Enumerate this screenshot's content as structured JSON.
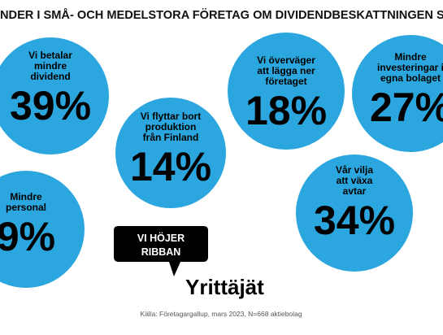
{
  "header": {
    "title": "NDER I SMÅ- OCH MEDELSTORA FÖRETAG OM DIVIDENDBESKATTNINGEN S"
  },
  "bubbles": [
    {
      "lines": [
        "Vi betalar",
        "mindre",
        "dividend"
      ],
      "value": "39%"
    },
    {
      "lines": [
        "Vi flyttar bort",
        "produktion",
        "från Finland"
      ],
      "value": "14%"
    },
    {
      "lines": [
        "Vi överväger",
        "att lägga ner",
        "företaget"
      ],
      "value": "18%"
    },
    {
      "lines": [
        "Mindre",
        "investeringar i",
        "egna bolaget"
      ],
      "value": "27%"
    },
    {
      "lines": [
        "Vår vilja",
        "att växa",
        "avtar"
      ],
      "value": "34%"
    },
    {
      "lines": [
        "Mindre",
        "personal"
      ],
      "value": "9%"
    }
  ],
  "logo": {
    "bubble_lines": [
      "VI HÖJER",
      "RIBBAN"
    ],
    "name": "Yrittäjät"
  },
  "source": "Källa: Företagargallup, mars 2023, N=668 aktiebolag"
}
